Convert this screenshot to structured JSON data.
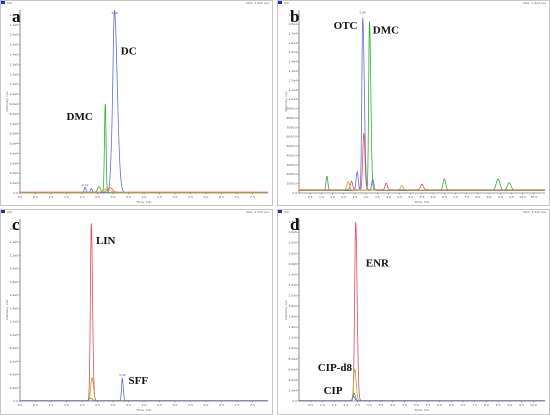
{
  "figure": {
    "background": "#ffffff",
    "frame_color": "#b8b8b8"
  },
  "chart_data": [
    {
      "id": "a",
      "type": "line",
      "panel_letter": "a",
      "xlabel": "Time, min",
      "ylabel": "Intensity, cps",
      "header_left": "XIC",
      "header_right": "Max. 1.8e5 cps",
      "xlim": [
        0.0,
        8.0
      ],
      "ylim": [
        0,
        185000
      ],
      "x_ticks": [
        "0.0",
        "0.5",
        "1.0",
        "1.5",
        "2.0",
        "2.5",
        "3.0",
        "3.5",
        "4.0",
        "4.5",
        "5.0",
        "5.5",
        "6.0",
        "6.5",
        "7.0",
        "7.5"
      ],
      "y_ticks": [
        "1.8e5",
        "1.7e5",
        "1.6e5",
        "1.5e5",
        "1.4e5",
        "1.3e5",
        "1.2e5",
        "1.1e5",
        "1.0e5",
        "9.0e4",
        "8.0e4",
        "7.0e4",
        "6.0e4",
        "5.0e4",
        "4.0e4",
        "3.0e4",
        "2.0e4",
        "1.0e4",
        "0.0"
      ],
      "series": [
        {
          "color": "#6a6ae0",
          "baseline": 500,
          "peaks": [
            [
              3.05,
              178000,
              0.05,
              0.09
            ],
            [
              2.1,
              5000,
              0.03,
              0.03
            ],
            [
              2.3,
              4000,
              0.03,
              0.03
            ],
            [
              2.95,
              26000,
              0.04,
              0.06
            ]
          ]
        },
        {
          "color": "#3aa83a",
          "baseline": 500,
          "peaks": [
            [
              2.75,
              90000,
              0.025,
              0.025
            ],
            [
              2.55,
              6000,
              0.05,
              0.05
            ]
          ]
        },
        {
          "color": "#e05050",
          "baseline": 800,
          "peaks": [
            [
              2.9,
              4500,
              0.08,
              0.08
            ]
          ]
        },
        {
          "color": "#c8a030",
          "baseline": 700,
          "peaks": [
            [
              2.8,
              3500,
              0.1,
              0.1
            ]
          ]
        }
      ],
      "annotations": [
        {
          "text": "DC",
          "x": 3.25,
          "y": 140000
        },
        {
          "text": "DMC",
          "x": 1.5,
          "y": 74000
        }
      ],
      "peak_labels": [
        {
          "text": "3.05",
          "x": 3.05,
          "y": 180000
        },
        {
          "text": "2.11",
          "x": 2.1,
          "y": 6000
        }
      ]
    },
    {
      "id": "b",
      "type": "line",
      "panel_letter": "b",
      "xlabel": "Time, min",
      "ylabel": "Intensity, cps",
      "header_left": "XIC",
      "header_right": "Max. 1.9e4 cps",
      "xlim": [
        0.0,
        11.0
      ],
      "ylim": [
        0,
        19500
      ],
      "x_ticks": [
        "0.5",
        "1.0",
        "1.5",
        "2.0",
        "2.5",
        "3.0",
        "3.5",
        "4.0",
        "4.5",
        "5.0",
        "5.5",
        "6.0",
        "6.5",
        "7.0",
        "7.5",
        "8.0",
        "8.5",
        "9.0",
        "9.5",
        "10.0",
        "10.5"
      ],
      "y_ticks": [
        "1.9e4",
        "1.8e4",
        "1.7e4",
        "1.6e4",
        "1.5e4",
        "1.4e4",
        "1.3e4",
        "1.2e4",
        "1.1e4",
        "1.0e4",
        "9000.0",
        "8000.0",
        "7000.0",
        "6000.0",
        "5000.0",
        "4000.0",
        "3000.0",
        "2000.0",
        "1000.0",
        "0.0"
      ],
      "series": [
        {
          "color": "#6a6ae0",
          "baseline": 250,
          "peaks": [
            [
              2.85,
              18400,
              0.04,
              0.07
            ],
            [
              2.6,
              2000,
              0.05,
              0.05
            ],
            [
              3.3,
              1200,
              0.05,
              0.05
            ]
          ]
        },
        {
          "color": "#3aa83a",
          "baseline": 300,
          "peaks": [
            [
              3.15,
              18000,
              0.035,
              0.06
            ],
            [
              1.25,
              1500,
              0.04,
              0.04
            ],
            [
              6.5,
              1200,
              0.06,
              0.06
            ],
            [
              8.9,
              1200,
              0.08,
              0.08
            ],
            [
              9.4,
              800,
              0.08,
              0.08
            ]
          ]
        },
        {
          "color": "#e05050",
          "baseline": 350,
          "peaks": [
            [
              2.9,
              6000,
              0.05,
              0.05
            ],
            [
              2.35,
              900,
              0.05,
              0.05
            ],
            [
              3.9,
              700,
              0.05,
              0.05
            ],
            [
              5.5,
              600,
              0.06,
              0.06
            ]
          ]
        },
        {
          "color": "#c8a030",
          "baseline": 300,
          "peaks": [
            [
              2.2,
              900,
              0.06,
              0.06
            ],
            [
              4.6,
              500,
              0.06,
              0.06
            ]
          ]
        }
      ],
      "annotations": [
        {
          "text": "OTC",
          "x": 1.55,
          "y": 17500
        },
        {
          "text": "DMC",
          "x": 3.3,
          "y": 17000
        }
      ],
      "peak_labels": [
        {
          "text": "2.85",
          "x": 2.85,
          "y": 19000
        }
      ]
    },
    {
      "id": "c",
      "type": "line",
      "panel_letter": "c",
      "xlabel": "Time, min",
      "ylabel": "Intensity, cps",
      "header_left": "XIC",
      "header_right": "Max. 2.7e5 cps",
      "xlim": [
        0.0,
        8.0
      ],
      "ylim": [
        0,
        275000
      ],
      "x_ticks": [
        "0.0",
        "0.5",
        "1.0",
        "1.5",
        "2.0",
        "2.5",
        "3.0",
        "3.5",
        "4.0",
        "4.5",
        "5.0",
        "5.5",
        "6.0",
        "6.5",
        "7.0",
        "7.5"
      ],
      "y_ticks": [
        "2.6e5",
        "2.4e5",
        "2.2e5",
        "2.0e5",
        "1.8e5",
        "1.6e5",
        "1.4e5",
        "1.2e5",
        "1.0e5",
        "8.0e4",
        "6.0e4",
        "4.0e4",
        "2.0e4",
        "0.0"
      ],
      "series": [
        {
          "color": "#e05050",
          "baseline": 400,
          "peaks": [
            [
              2.3,
              268000,
              0.03,
              0.04
            ]
          ]
        },
        {
          "color": "#c8a030",
          "baseline": 400,
          "peaks": [
            [
              2.32,
              35000,
              0.04,
              0.05
            ]
          ]
        },
        {
          "color": "#3aa83a",
          "baseline": 400,
          "peaks": [
            [
              2.28,
              4000,
              0.05,
              0.05
            ]
          ]
        },
        {
          "color": "#6a6ae0",
          "baseline": 400,
          "peaks": [
            [
              3.3,
              34000,
              0.025,
              0.03
            ]
          ]
        }
      ],
      "annotations": [
        {
          "text": "LIN",
          "x": 2.45,
          "y": 237000
        },
        {
          "text": "SFF",
          "x": 3.5,
          "y": 26000
        }
      ],
      "peak_labels": [
        {
          "text": "3.30",
          "x": 3.3,
          "y": 36000
        }
      ]
    },
    {
      "id": "d",
      "type": "line",
      "panel_letter": "d",
      "xlabel": "Time, min",
      "ylabel": "Intensity, cps",
      "header_left": "XIC",
      "header_right": "Max. 3.4e5 cps",
      "xlim": [
        0.0,
        10.5
      ],
      "ylim": [
        0,
        345000
      ],
      "x_ticks": [
        "0.5",
        "1.0",
        "1.5",
        "2.0",
        "2.5",
        "3.0",
        "3.5",
        "4.0",
        "4.5",
        "5.0",
        "5.5",
        "6.0",
        "6.5",
        "7.0",
        "7.5",
        "8.0",
        "8.5",
        "9.0",
        "9.5",
        "10.0"
      ],
      "y_ticks": [
        "3.4e5",
        "3.2e5",
        "3.0e5",
        "2.8e5",
        "2.6e5",
        "2.4e5",
        "2.2e5",
        "2.0e5",
        "1.8e5",
        "1.6e5",
        "1.4e5",
        "1.2e5",
        "1.0e5",
        "8.0e4",
        "6.0e4",
        "4.0e4",
        "2.0e4",
        "0.0"
      ],
      "series": [
        {
          "color": "#e05050",
          "baseline": 500,
          "peaks": [
            [
              2.42,
              340000,
              0.045,
              0.06
            ]
          ]
        },
        {
          "color": "#c8a030",
          "baseline": 500,
          "peaks": [
            [
              2.38,
              60000,
              0.05,
              0.06
            ]
          ]
        },
        {
          "color": "#3aa83a",
          "baseline": 500,
          "peaks": [
            [
              2.36,
              14000,
              0.05,
              0.05
            ]
          ]
        },
        {
          "color": "#6a6ae0",
          "baseline": 500,
          "peaks": [
            [
              2.34,
              8000,
              0.05,
              0.05
            ]
          ]
        }
      ],
      "annotations": [
        {
          "text": "ENR",
          "x": 2.85,
          "y": 255000
        },
        {
          "text": "CIP-d8",
          "x": 0.8,
          "y": 57000
        },
        {
          "text": "CIP",
          "x": 1.05,
          "y": 13000
        }
      ],
      "peak_labels": []
    }
  ]
}
